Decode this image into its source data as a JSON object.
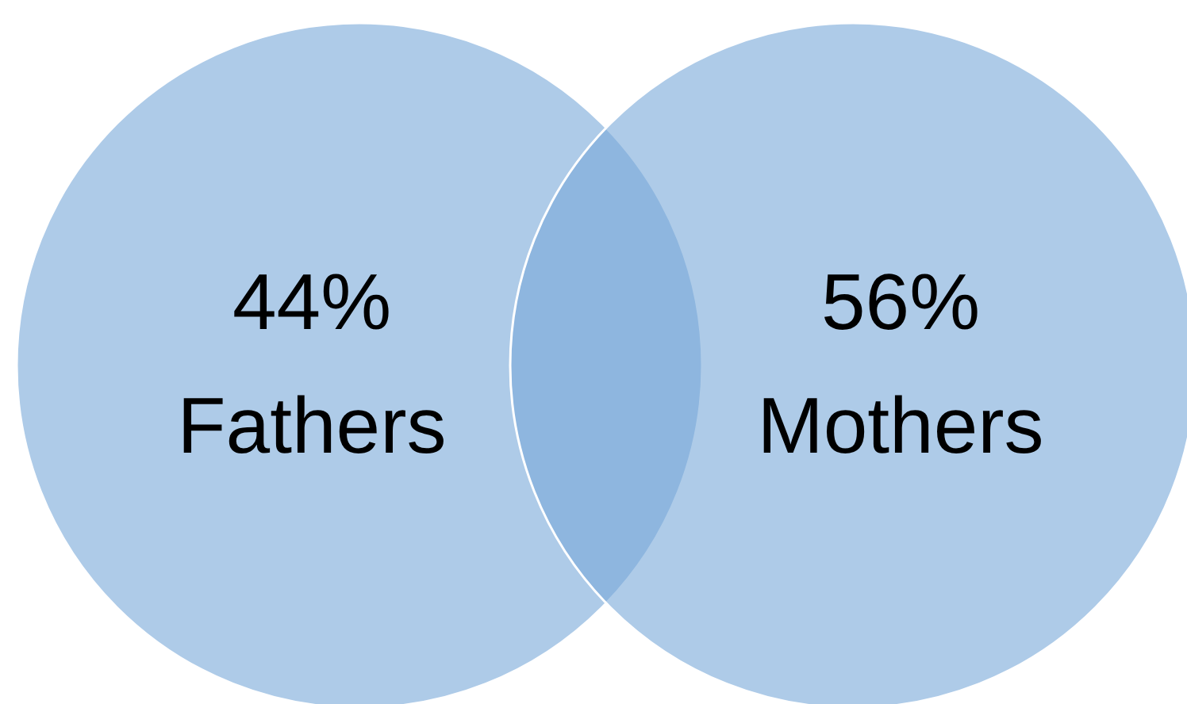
{
  "chart_data": {
    "type": "other",
    "categories": [
      "Fathers",
      "Mothers"
    ],
    "values": [
      44,
      56
    ],
    "value_labels": [
      "44%",
      "56%"
    ],
    "colors": [
      "#78a8d9",
      "#78a8d9"
    ]
  }
}
